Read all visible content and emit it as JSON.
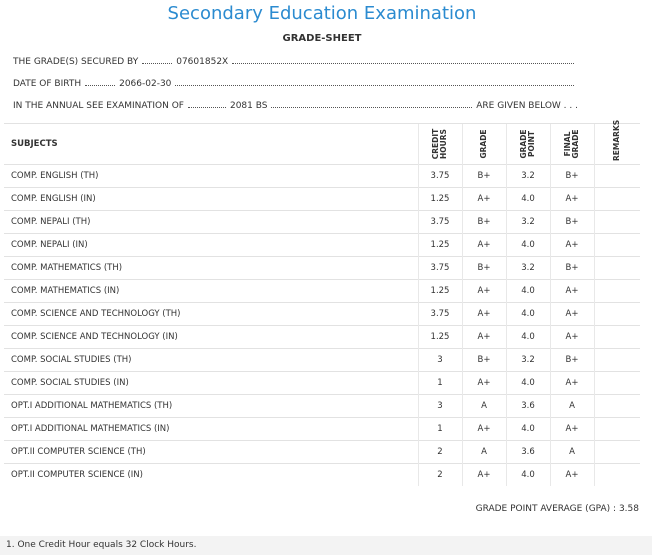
{
  "header": {
    "title": "Secondary Education Examination",
    "subtitle": "GRADE-SHEET"
  },
  "info": [
    {
      "label": "THE GRADE(S) SECURED BY",
      "value": "07601852X"
    },
    {
      "label": "DATE OF BIRTH",
      "value": "2066-02-30"
    },
    {
      "label": "IN THE ANNUAL SEE EXAMINATION OF",
      "value": "2081 BS",
      "suffix": "ARE GIVEN BELOW . . ."
    }
  ],
  "table": {
    "columns": [
      "SUBJECTS",
      "CREDIT HOURS",
      "GRADE",
      "GRADE POINT",
      "FINAL GRADE",
      "REMARKS"
    ],
    "rows": [
      [
        "COMP. ENGLISH (TH)",
        "3.75",
        "B+",
        "3.2",
        "B+"
      ],
      [
        "COMP. ENGLISH (IN)",
        "1.25",
        "A+",
        "4.0",
        "A+"
      ],
      [
        "COMP. NEPALI (TH)",
        "3.75",
        "B+",
        "3.2",
        "B+"
      ],
      [
        "COMP. NEPALI (IN)",
        "1.25",
        "A+",
        "4.0",
        "A+"
      ],
      [
        "COMP. MATHEMATICS (TH)",
        "3.75",
        "B+",
        "3.2",
        "B+"
      ],
      [
        "COMP. MATHEMATICS (IN)",
        "1.25",
        "A+",
        "4.0",
        "A+"
      ],
      [
        "COMP. SCIENCE AND TECHNOLOGY (TH)",
        "3.75",
        "A+",
        "4.0",
        "A+"
      ],
      [
        "COMP. SCIENCE AND TECHNOLOGY (IN)",
        "1.25",
        "A+",
        "4.0",
        "A+"
      ],
      [
        "COMP. SOCIAL STUDIES (TH)",
        "3",
        "B+",
        "3.2",
        "B+"
      ],
      [
        "COMP. SOCIAL STUDIES (IN)",
        "1",
        "A+",
        "4.0",
        "A+"
      ],
      [
        "OPT.I ADDITIONAL MATHEMATICS (TH)",
        "3",
        "A",
        "3.6",
        "A"
      ],
      [
        "OPT.I ADDITIONAL MATHEMATICS (IN)",
        "1",
        "A+",
        "4.0",
        "A+"
      ],
      [
        "OPT.II COMPUTER SCIENCE (TH)",
        "2",
        "A",
        "3.6",
        "A"
      ],
      [
        "OPT.II COMPUTER SCIENCE (IN)",
        "2",
        "A+",
        "4.0",
        "A+"
      ]
    ]
  },
  "gpa": {
    "label": "GRADE POINT AVERAGE (GPA) :",
    "value": "3.58"
  },
  "footnote": "1. One Credit Hour equals 32 Clock Hours."
}
